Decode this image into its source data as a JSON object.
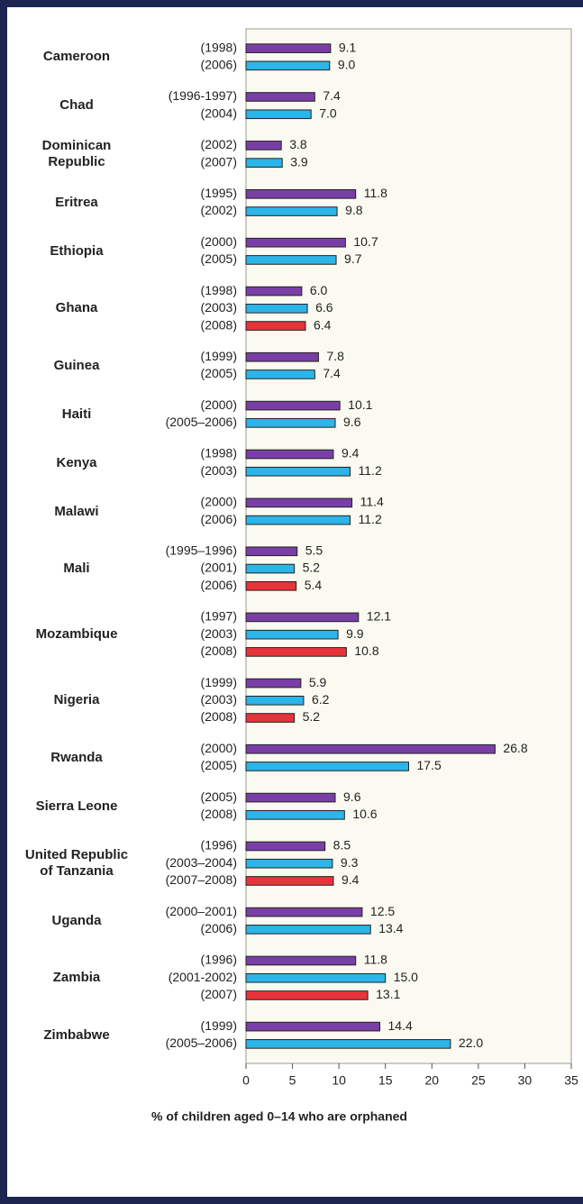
{
  "chart_data": {
    "type": "bar",
    "orientation": "horizontal",
    "xlabel": "% of children aged 0–14 who are orphaned",
    "xlim": [
      0,
      35
    ],
    "xticks": [
      0,
      5,
      10,
      15,
      20,
      25,
      30,
      35
    ],
    "colors": [
      "#7a3fa6",
      "#2bb5e8",
      "#e8333a"
    ],
    "groups": [
      {
        "country": "Cameroon",
        "years": [
          "(1998)",
          "(2006)"
        ],
        "values": [
          9.1,
          9
        ],
        "value_labels": [
          "9.1",
          "9.0"
        ]
      },
      {
        "country": "Chad",
        "years": [
          "(1996-1997)",
          "(2004)"
        ],
        "values": [
          7.4,
          7
        ],
        "value_labels": [
          "7.4",
          "7.0"
        ]
      },
      {
        "country": "Dominican Republic",
        "years": [
          "(2002)",
          "(2007)"
        ],
        "values": [
          3.8,
          3.9
        ],
        "value_labels": [
          "3.8",
          "3.9"
        ]
      },
      {
        "country": "Eritrea",
        "years": [
          "(1995)",
          "(2002)"
        ],
        "values": [
          11.8,
          9.8
        ],
        "value_labels": [
          "11.8",
          "9.8"
        ]
      },
      {
        "country": "Ethiopia",
        "years": [
          "(2000)",
          "(2005)"
        ],
        "values": [
          10.7,
          9.7
        ],
        "value_labels": [
          "10.7",
          "9.7"
        ]
      },
      {
        "country": "Ghana",
        "years": [
          "(1998)",
          "(2003)",
          "(2008)"
        ],
        "values": [
          6,
          6.6,
          6.4
        ],
        "value_labels": [
          "6.0",
          "6.6",
          "6.4"
        ]
      },
      {
        "country": "Guinea",
        "years": [
          "(1999)",
          "(2005)"
        ],
        "values": [
          7.8,
          7.4
        ],
        "value_labels": [
          "7.8",
          "7.4"
        ]
      },
      {
        "country": "Haiti",
        "years": [
          "(2000)",
          "(2005–2006)"
        ],
        "values": [
          10.1,
          9.6
        ],
        "value_labels": [
          "10.1",
          "9.6"
        ]
      },
      {
        "country": "Kenya",
        "years": [
          "(1998)",
          "(2003)"
        ],
        "values": [
          9.4,
          11.2
        ],
        "value_labels": [
          "9.4",
          "11.2"
        ]
      },
      {
        "country": "Malawi",
        "years": [
          "(2000)",
          "(2006)"
        ],
        "values": [
          11.4,
          11.2
        ],
        "value_labels": [
          "11.4",
          "11.2"
        ]
      },
      {
        "country": "Mali",
        "years": [
          "(1995–1996)",
          "(2001)",
          "(2006)"
        ],
        "values": [
          5.5,
          5.2,
          5.4
        ],
        "value_labels": [
          "5.5",
          "5.2",
          "5.4"
        ]
      },
      {
        "country": "Mozambique",
        "years": [
          "(1997)",
          "(2003)",
          "(2008)"
        ],
        "values": [
          12.1,
          9.9,
          10.8
        ],
        "value_labels": [
          "12.1",
          "9.9",
          "10.8"
        ]
      },
      {
        "country": "Nigeria",
        "years": [
          "(1999)",
          "(2003)",
          "(2008)"
        ],
        "values": [
          5.9,
          6.2,
          5.2
        ],
        "value_labels": [
          "5.9",
          "6.2",
          "5.2"
        ]
      },
      {
        "country": "Rwanda",
        "years": [
          "(2000)",
          "(2005)"
        ],
        "values": [
          26.8,
          17.5
        ],
        "value_labels": [
          "26.8",
          "17.5"
        ]
      },
      {
        "country": "Sierra Leone",
        "years": [
          "(2005)",
          "(2008)"
        ],
        "values": [
          9.6,
          10.6
        ],
        "value_labels": [
          "9.6",
          "10.6"
        ]
      },
      {
        "country": "United Republic of Tanzania",
        "years": [
          "(1996)",
          "(2003–2004)",
          "(2007–2008)"
        ],
        "values": [
          8.5,
          9.3,
          9.4
        ],
        "value_labels": [
          "8.5",
          "9.3",
          "9.4"
        ]
      },
      {
        "country": "Uganda",
        "years": [
          "(2000–2001)",
          "(2006)"
        ],
        "values": [
          12.5,
          13.4
        ],
        "value_labels": [
          "12.5",
          "13.4"
        ]
      },
      {
        "country": "Zambia",
        "years": [
          "(1996)",
          "(2001-2002)",
          "(2007)"
        ],
        "values": [
          11.8,
          15,
          13.1
        ],
        "value_labels": [
          "11.8",
          "15.0",
          "13.1"
        ]
      },
      {
        "country": "Zimbabwe",
        "years": [
          "(1999)",
          "(2005–2006)"
        ],
        "values": [
          14.4,
          22
        ],
        "value_labels": [
          "14.4",
          "22.0"
        ]
      }
    ]
  }
}
